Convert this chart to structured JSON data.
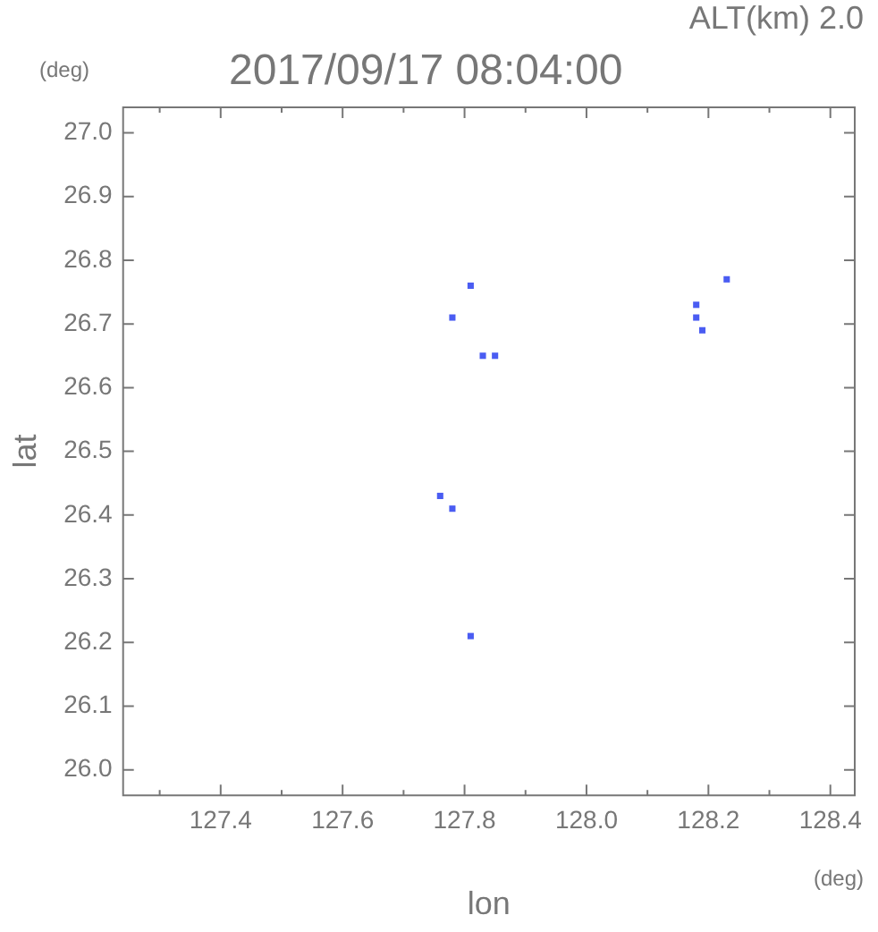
{
  "chart_data": {
    "type": "scatter",
    "title": "2017/09/17 08:04:00",
    "subtitle": "ALT(km) 2.0",
    "xlabel": "lon",
    "ylabel": "lat",
    "annotations": [
      "(deg)",
      "(deg)"
    ],
    "x": [
      127.81,
      127.78,
      127.85,
      127.83,
      128.23,
      128.18,
      128.18,
      128.19,
      127.76,
      127.78,
      127.81
    ],
    "series": [
      {
        "color": "#4a5cf2",
        "values": [
          26.76,
          26.71,
          26.65,
          26.65,
          26.77,
          26.73,
          26.71,
          26.69,
          26.43,
          26.41,
          26.21
        ]
      }
    ],
    "xlim": [
      127.24,
      128.44
    ],
    "ylim": [
      25.96,
      27.04
    ],
    "xticks": [
      {
        "value": 127.3,
        "label": null
      },
      127.4,
      {
        "value": 127.5,
        "label": null
      },
      127.6,
      {
        "value": 127.7,
        "label": null
      },
      127.8,
      {
        "value": 127.9,
        "label": null
      },
      {
        "value": 128.0,
        "label": "128.0"
      },
      {
        "value": 128.1,
        "label": null
      },
      128.2,
      {
        "value": 128.3,
        "label": null
      },
      128.4
    ],
    "yticks": [
      {
        "value": 26.0,
        "label": "26.0"
      },
      26.1,
      26.2,
      26.3,
      26.4,
      26.5,
      26.6,
      26.7,
      26.8,
      26.9,
      {
        "value": 27.0,
        "label": "27.0"
      }
    ],
    "marker": "square",
    "grid": false,
    "legend": false
  }
}
